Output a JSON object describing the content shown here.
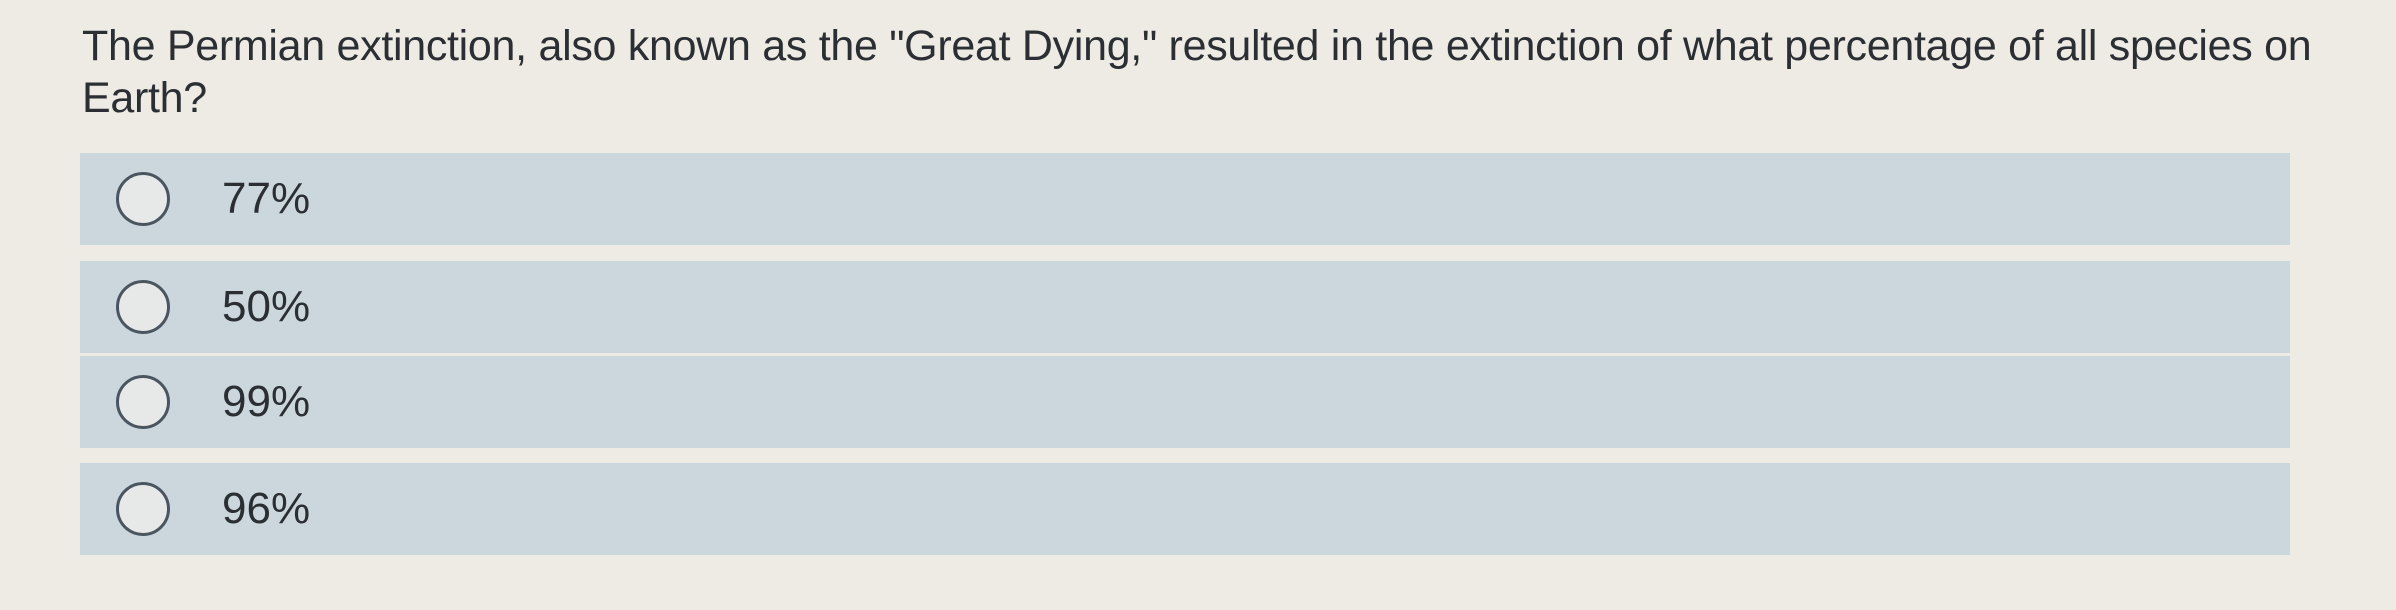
{
  "question": "The Permian extinction, also known as the \"Great Dying,\" resulted in the extinction of what percentage of all species on Earth?",
  "options": [
    {
      "label": "77%",
      "selected": false
    },
    {
      "label": "50%",
      "selected": false
    },
    {
      "label": "99%",
      "selected": false
    },
    {
      "label": "96%",
      "selected": false
    }
  ],
  "colors": {
    "background": "#eeebe5",
    "option_background": "#cbd6dd",
    "text": "#2b2f33"
  }
}
